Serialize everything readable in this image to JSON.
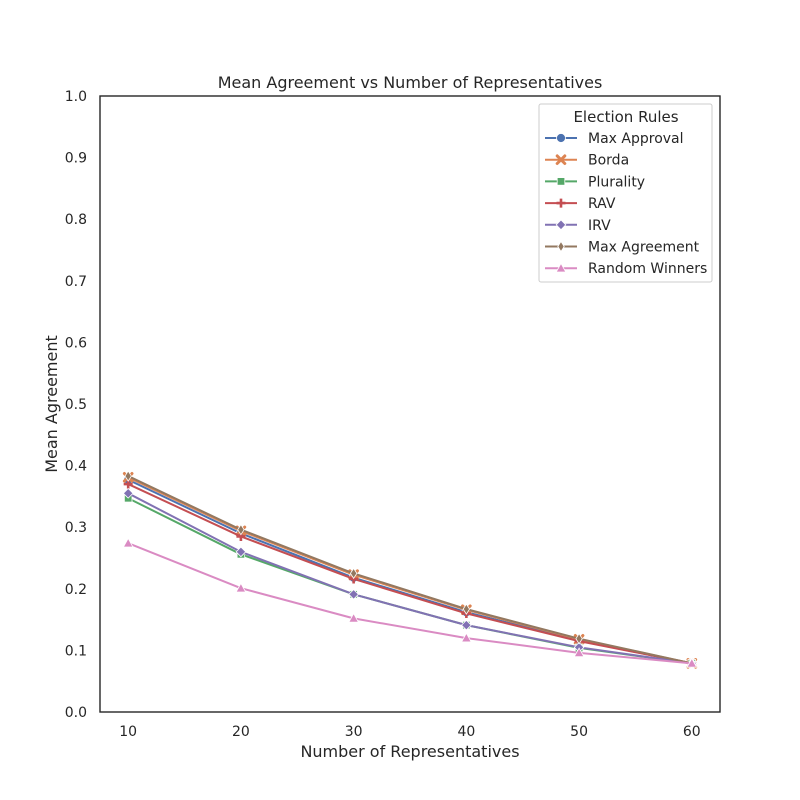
{
  "chart_data": {
    "type": "line",
    "title": "Mean Agreement vs Number of Representatives",
    "xlabel": "Number of Representatives",
    "ylabel": "Mean Agreement",
    "xlim": [
      7.5,
      62.5
    ],
    "ylim": [
      0,
      1.0
    ],
    "x_ticks": [
      10,
      20,
      30,
      40,
      50,
      60
    ],
    "y_ticks": [
      "0.0",
      "0.1",
      "0.2",
      "0.3",
      "0.4",
      "0.5",
      "0.6",
      "0.7",
      "0.8",
      "0.9",
      "1.0"
    ],
    "grid": false,
    "legend": {
      "title": "Election Rules",
      "placement": "top-right"
    },
    "x": [
      10,
      20,
      30,
      40,
      50,
      60
    ],
    "series": [
      {
        "name": "Max Approval",
        "color": "#4c72b0",
        "marker": "circle",
        "values": [
          0.377,
          0.29,
          0.218,
          0.162,
          0.116,
          0.079
        ]
      },
      {
        "name": "Borda",
        "color": "#dd8452",
        "marker": "x",
        "values": [
          0.381,
          0.294,
          0.223,
          0.166,
          0.118,
          0.079
        ]
      },
      {
        "name": "Plurality",
        "color": "#55a868",
        "marker": "square",
        "values": [
          0.347,
          0.256,
          0.191,
          0.141,
          0.104,
          0.079
        ]
      },
      {
        "name": "RAV",
        "color": "#c44e52",
        "marker": "plus",
        "values": [
          0.37,
          0.285,
          0.216,
          0.16,
          0.115,
          0.079
        ]
      },
      {
        "name": "IRV",
        "color": "#8172b3",
        "marker": "diamond",
        "values": [
          0.355,
          0.26,
          0.191,
          0.141,
          0.105,
          0.079
        ]
      },
      {
        "name": "Max Agreement",
        "color": "#937860",
        "marker": "thin-diamond",
        "values": [
          0.383,
          0.296,
          0.225,
          0.167,
          0.119,
          0.079
        ]
      },
      {
        "name": "Random Winners",
        "color": "#da8bc3",
        "marker": "triangle",
        "values": [
          0.274,
          0.201,
          0.152,
          0.12,
          0.096,
          0.079
        ]
      }
    ]
  }
}
